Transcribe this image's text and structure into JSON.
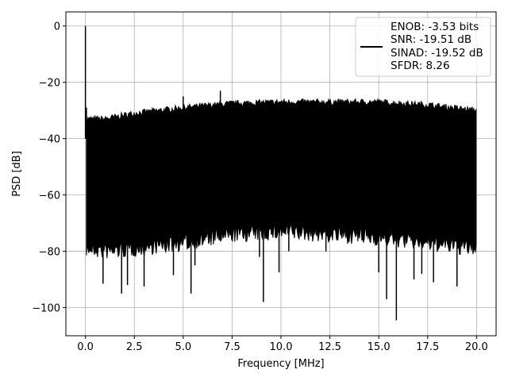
{
  "chart_data": {
    "type": "line",
    "title": "",
    "xlabel": "Frequency [MHz]",
    "ylabel": "PSD [dB]",
    "xlim": [
      -1.0,
      21.0
    ],
    "ylim": [
      -110,
      5
    ],
    "xticks": [
      0.0,
      2.5,
      5.0,
      7.5,
      10.0,
      12.5,
      15.0,
      17.5,
      20.0
    ],
    "xtick_labels": [
      "0.0",
      "2.5",
      "5.0",
      "7.5",
      "10.0",
      "12.5",
      "15.0",
      "17.5",
      "20.0"
    ],
    "yticks": [
      0,
      -20,
      -40,
      -60,
      -80,
      -100
    ],
    "ytick_labels": [
      "0",
      "−20",
      "−40",
      "−60",
      "−80",
      "−100"
    ],
    "grid": true,
    "legend_position": "top-right",
    "series": [
      {
        "name": "PSD",
        "color": "#000000",
        "legend_lines": [
          "ENOB: -3.53 bits",
          "SNR: -19.51 dB",
          "SINAD: -19.52 dB",
          "SFDR: 8.26"
        ],
        "envelope_x": [
          0.1,
          1,
          2.5,
          5,
          7.5,
          10,
          12.5,
          15,
          17.5,
          20
        ],
        "upper_envelope": [
          -33,
          -33,
          -31,
          -29,
          -27.5,
          -27,
          -27,
          -27,
          -28,
          -30
        ],
        "lower_envelope": [
          -76,
          -77,
          -76,
          -74,
          -71,
          -70,
          -71,
          -72,
          -74,
          -76
        ],
        "peaks": [
          {
            "x": 0.0,
            "y": 0
          },
          {
            "x": 0.05,
            "y": -29
          },
          {
            "x": 5.0,
            "y": -25
          },
          {
            "x": 6.9,
            "y": -23
          }
        ],
        "dips": [
          {
            "x": 0.9,
            "y": -91.5
          },
          {
            "x": 1.85,
            "y": -95
          },
          {
            "x": 2.15,
            "y": -92
          },
          {
            "x": 3.0,
            "y": -92.5
          },
          {
            "x": 4.5,
            "y": -88.5
          },
          {
            "x": 5.4,
            "y": -95
          },
          {
            "x": 5.6,
            "y": -85
          },
          {
            "x": 9.1,
            "y": -98
          },
          {
            "x": 9.9,
            "y": -87.5
          },
          {
            "x": 15.0,
            "y": -87.5
          },
          {
            "x": 15.4,
            "y": -97
          },
          {
            "x": 15.9,
            "y": -104.5
          },
          {
            "x": 16.8,
            "y": -90
          },
          {
            "x": 17.2,
            "y": -88
          },
          {
            "x": 17.8,
            "y": -91
          },
          {
            "x": 19.0,
            "y": -92.5
          },
          {
            "x": 0.3,
            "y": -80
          },
          {
            "x": 8.9,
            "y": -82
          },
          {
            "x": 10.4,
            "y": -80
          },
          {
            "x": 12.3,
            "y": -80
          }
        ]
      }
    ]
  }
}
